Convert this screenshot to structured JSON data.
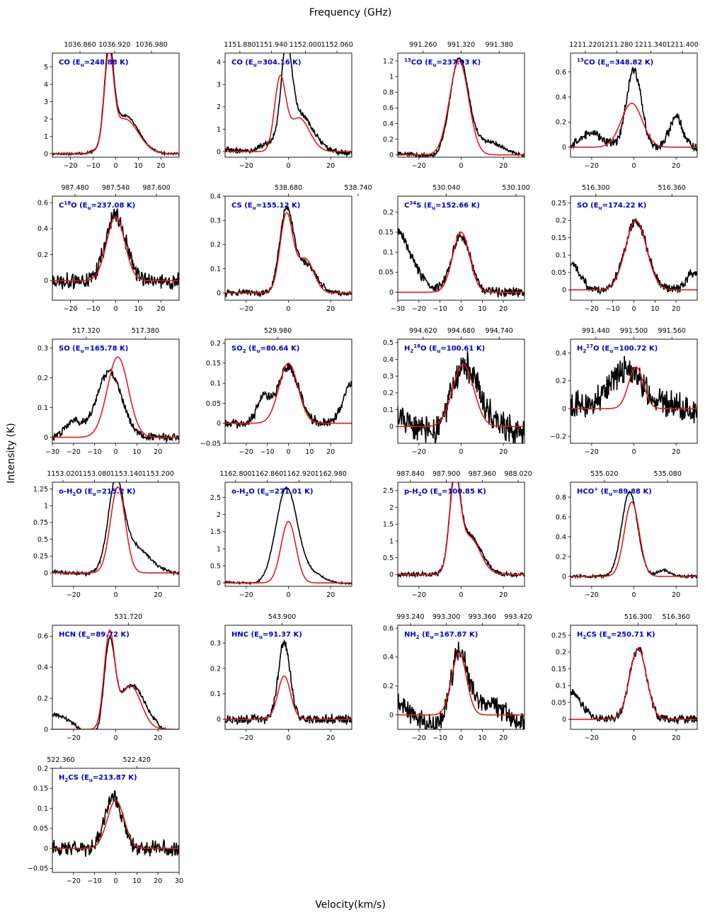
{
  "figure": {
    "top_label": "Frequency (GHz)",
    "bottom_label": "Velocity(km/s)",
    "left_label": "Intensity (K)"
  },
  "colors": {
    "observed": "#000000",
    "model": "#e31a1c",
    "label": "#0000cc"
  },
  "chart_data": [
    {
      "type": "line",
      "title": "CO (E$_u$=248.88 K)",
      "xlim": [
        -28,
        28
      ],
      "ylim": [
        -0.2,
        5.8
      ],
      "xticks": [
        -20,
        -10,
        0,
        10,
        20
      ],
      "yticks": [
        0,
        1,
        2,
        3,
        4,
        5
      ],
      "top_ticks": [
        "1036.860",
        "1036.920",
        "1036.980"
      ],
      "top_tick_v": [
        -15.8,
        -0.5,
        15.8
      ],
      "model": [
        {
          "a": 5.0,
          "c": -3,
          "w": 2.0
        },
        {
          "a": 2.0,
          "c": 4,
          "w": 6.0
        }
      ],
      "obs": [
        {
          "a": 5.3,
          "c": -3,
          "w": 2.0
        },
        {
          "a": 2.2,
          "c": 4,
          "w": 6.0
        }
      ],
      "noise": 0.05,
      "base": 0
    },
    {
      "type": "line",
      "title": "CO (E$_u$=304.16 K)",
      "xlim": [
        -30,
        30
      ],
      "ylim": [
        -0.25,
        4.4
      ],
      "xticks": [
        -20,
        0,
        20
      ],
      "yticks": [
        0,
        1,
        2,
        3,
        4
      ],
      "top_ticks": [
        "1151.880",
        "1151.940",
        "1152.000",
        "1152.060"
      ],
      "top_tick_v": [
        -23,
        -8,
        8,
        23
      ],
      "model": [
        {
          "a": 3.1,
          "c": -4,
          "w": 2.6
        },
        {
          "a": 1.5,
          "c": 5,
          "w": 5.0
        }
      ],
      "obs": [
        {
          "a": 3.9,
          "c": -1,
          "w": 2.5
        },
        {
          "a": 1.6,
          "c": 5,
          "w": 6.0
        },
        {
          "a": 0.4,
          "c": -10,
          "w": 5.0
        }
      ],
      "noise": 0.1,
      "base": 0.1
    },
    {
      "type": "line",
      "title": "$^{13}$CO (E$_u$=237.93 K)",
      "xlim": [
        -30,
        30
      ],
      "ylim": [
        -0.03,
        1.3
      ],
      "xticks": [
        -20,
        0,
        20
      ],
      "yticks": [
        0,
        0.2,
        0.4,
        0.6,
        0.8,
        1.0,
        1.2
      ],
      "top_ticks": [
        "991.260",
        "991.320",
        "991.380"
      ],
      "top_tick_v": [
        -18,
        0,
        18
      ],
      "model": [
        {
          "a": 1.2,
          "c": -1,
          "w": 4.5
        }
      ],
      "obs": [
        {
          "a": 1.2,
          "c": -1,
          "w": 4.3
        },
        {
          "a": 0.15,
          "c": 12,
          "w": 8.0
        }
      ],
      "noise": 0.02,
      "base": 0.02
    },
    {
      "type": "line",
      "title": "$^{13}$CO (E$_u$=348.82 K)",
      "xlim": [
        -30,
        30
      ],
      "ylim": [
        -0.08,
        0.75
      ],
      "xticks": [
        -20,
        0,
        20
      ],
      "yticks": [
        0,
        0.2,
        0.4,
        0.6
      ],
      "top_ticks": [
        "1211.220",
        "1211.280",
        "1211.340",
        "1211.400"
      ],
      "top_tick_v": [
        -23,
        -8,
        8,
        23
      ],
      "model": [
        {
          "a": 0.35,
          "c": -1,
          "w": 5.0
        }
      ],
      "obs": [
        {
          "a": 0.62,
          "c": 0,
          "w": 3.5
        },
        {
          "a": 0.25,
          "c": 20,
          "w": 3.0
        },
        {
          "a": 0.12,
          "c": -20,
          "w": 5.0
        }
      ],
      "noise": 0.03,
      "base": 0.0
    },
    {
      "type": "line",
      "title": "C$^{18}$O (E$_u$=237.08 K)",
      "xlim": [
        -28,
        28
      ],
      "ylim": [
        -0.15,
        0.65
      ],
      "xticks": [
        -20,
        -10,
        0,
        10,
        20
      ],
      "yticks": [
        0,
        0.2,
        0.4,
        0.6
      ],
      "top_ticks": [
        "987.480",
        "987.540",
        "987.600"
      ],
      "top_tick_v": [
        -18,
        0,
        18
      ],
      "model": [
        {
          "a": 0.49,
          "c": 0,
          "w": 4.0
        }
      ],
      "obs": [
        {
          "a": 0.5,
          "c": 0,
          "w": 4.5
        }
      ],
      "noise": 0.05,
      "base": 0
    },
    {
      "type": "line",
      "title": "CS (E$_u$=155.12 K)",
      "xlim": [
        -30,
        30
      ],
      "ylim": [
        -0.03,
        0.4
      ],
      "xticks": [
        -20,
        0,
        20
      ],
      "yticks": [
        0,
        0.1,
        0.2,
        0.3,
        0.4
      ],
      "top_ticks": [
        "538.680",
        "538.740"
      ],
      "top_tick_v": [
        0,
        33
      ],
      "model": [
        {
          "a": 0.32,
          "c": -1,
          "w": 3.0
        },
        {
          "a": 0.14,
          "c": 8,
          "w": 4.0
        }
      ],
      "obs": [
        {
          "a": 0.33,
          "c": -1,
          "w": 3.2
        },
        {
          "a": 0.12,
          "c": 8,
          "w": 5.0
        }
      ],
      "noise": 0.01,
      "base": 0.0
    },
    {
      "type": "line",
      "title": "C$^{34}$S (E$_u$=152.66 K)",
      "xlim": [
        -30,
        30
      ],
      "ylim": [
        -0.02,
        0.24
      ],
      "xticks": [
        -30,
        -20,
        -10,
        0,
        10,
        20
      ],
      "yticks": [
        0,
        0.05,
        0.1,
        0.15,
        0.2
      ],
      "top_ticks": [
        "530.040",
        "530.100"
      ],
      "top_tick_v": [
        -7,
        26
      ],
      "model": [
        {
          "a": 0.15,
          "c": 0,
          "w": 4.0
        }
      ],
      "obs": [
        {
          "a": 0.14,
          "c": 0,
          "w": 4.5
        },
        {
          "a": 0.16,
          "c": -32,
          "w": 8.0
        }
      ],
      "noise": 0.01,
      "base": 0.0
    },
    {
      "type": "line",
      "title": "SO (E$_u$=174.22 K)",
      "xlim": [
        -30,
        30
      ],
      "ylim": [
        -0.03,
        0.27
      ],
      "xticks": [
        -20,
        -10,
        0,
        10,
        20
      ],
      "yticks": [
        0,
        0.05,
        0.1,
        0.15,
        0.2,
        0.25
      ],
      "top_ticks": [
        "516.300",
        "516.360"
      ],
      "top_tick_v": [
        -18,
        18
      ],
      "model": [
        {
          "a": 0.2,
          "c": 1,
          "w": 5.0
        }
      ],
      "obs": [
        {
          "a": 0.2,
          "c": 1,
          "w": 5.2
        },
        {
          "a": 0.08,
          "c": -30,
          "w": 4.0
        },
        {
          "a": 0.05,
          "c": 28,
          "w": 3.0
        }
      ],
      "noise": 0.01,
      "base": 0.0
    },
    {
      "type": "line",
      "title": "SO (E$_u$=165.78 K)",
      "xlim": [
        -30,
        30
      ],
      "ylim": [
        -0.02,
        0.33
      ],
      "xticks": [
        -30,
        -20,
        -10,
        0,
        10,
        20
      ],
      "yticks": [
        0,
        0.1,
        0.2,
        0.3
      ],
      "top_ticks": [
        "517.320",
        "517.380"
      ],
      "top_tick_v": [
        -14,
        14
      ],
      "model": [
        {
          "a": 0.27,
          "c": 1,
          "w": 5.0
        }
      ],
      "obs": [
        {
          "a": 0.22,
          "c": -3,
          "w": 6.0
        },
        {
          "a": 0.05,
          "c": -20,
          "w": 4.0
        }
      ],
      "noise": 0.01,
      "base": 0.0
    },
    {
      "type": "line",
      "title": "SO$_2$ (E$_u$=80.64 K)",
      "xlim": [
        -30,
        30
      ],
      "ylim": [
        -0.05,
        0.21
      ],
      "xticks": [
        -20,
        -10,
        0,
        10,
        20
      ],
      "yticks": [
        -0.05,
        0,
        0.05,
        0.1,
        0.15,
        0.2
      ],
      "top_ticks": [
        "529.980"
      ],
      "top_tick_v": [
        -5
      ],
      "model": [
        {
          "a": 0.15,
          "c": 0,
          "w": 4.5
        }
      ],
      "obs": [
        {
          "a": 0.14,
          "c": 0,
          "w": 5.0
        },
        {
          "a": 0.06,
          "c": -12,
          "w": 3.0
        },
        {
          "a": 0.1,
          "c": 30,
          "w": 4.0
        }
      ],
      "noise": 0.01,
      "base": 0.0
    },
    {
      "type": "line",
      "title": "H$_2^{18}$O (E$_u$=100.61 K)",
      "xlim": [
        -30,
        30
      ],
      "ylim": [
        -0.1,
        0.52
      ],
      "xticks": [
        -20,
        0,
        20
      ],
      "yticks": [
        0,
        0.1,
        0.2,
        0.3,
        0.4,
        0.5
      ],
      "top_ticks": [
        "994.620",
        "994.680",
        "994.740"
      ],
      "top_tick_v": [
        -18,
        0,
        18
      ],
      "model": [
        {
          "a": 0.37,
          "c": 1,
          "w": 5.0
        }
      ],
      "obs": [
        {
          "a": 0.35,
          "c": 1,
          "w": 6.0
        }
      ],
      "noise": 0.07,
      "base": 0.05
    },
    {
      "type": "line",
      "title": "H$_2^{17}$O (E$_u$=100.72 K)",
      "xlim": [
        -30,
        30
      ],
      "ylim": [
        -0.25,
        0.5
      ],
      "xticks": [
        -20,
        0,
        20
      ],
      "yticks": [
        -0.2,
        0,
        0.2,
        0.4
      ],
      "top_ticks": [
        "991.440",
        "991.500",
        "991.560"
      ],
      "top_tick_v": [
        -18,
        0,
        18
      ],
      "model": [
        {
          "a": 0.3,
          "c": 1,
          "w": 3.5
        }
      ],
      "obs": [
        {
          "a": 0.3,
          "c": -5,
          "w": 8.0
        }
      ],
      "noise": 0.08,
      "base": 0.03
    },
    {
      "type": "line",
      "title": "o-H$_2$O (E$_u$=215.2 K)",
      "xlim": [
        -30,
        30
      ],
      "ylim": [
        -0.2,
        1.35
      ],
      "xticks": [
        -20,
        0,
        20
      ],
      "yticks": [
        0,
        0.25,
        0.5,
        0.75,
        1.0,
        1.25
      ],
      "top_ticks": [
        "1153.020",
        "1153.080",
        "1153.140",
        "1153.200"
      ],
      "top_tick_v": [
        -25,
        -10,
        5,
        20
      ],
      "model": [
        {
          "a": 1.28,
          "c": 1,
          "w": 3.5
        }
      ],
      "obs": [
        {
          "a": 1.15,
          "c": 0,
          "w": 3.5
        },
        {
          "a": 0.4,
          "c": 7,
          "w": 8.0
        }
      ],
      "noise": 0.02,
      "base": 0.02
    },
    {
      "type": "line",
      "title": "o-H$_2$O (E$_u$=271.01 K)",
      "xlim": [
        -30,
        30
      ],
      "ylim": [
        -0.1,
        2.95
      ],
      "xticks": [
        -20,
        0,
        20
      ],
      "yticks": [
        0,
        0.5,
        1.0,
        1.5,
        2.0,
        2.5
      ],
      "top_ticks": [
        "1162.800",
        "1162.860",
        "1162.920",
        "1162.980"
      ],
      "top_tick_v": [
        -25,
        -10,
        5,
        20
      ],
      "model": [
        {
          "a": 1.8,
          "c": 0,
          "w": 3.5
        }
      ],
      "obs": [
        {
          "a": 2.75,
          "c": -1,
          "w": 5.0
        },
        {
          "a": 0.25,
          "c": 10,
          "w": 6.0
        }
      ],
      "noise": 0.02,
      "base": 0.03
    },
    {
      "type": "line",
      "title": "p-H$_2$O (E$_u$=100.85 K)",
      "xlim": [
        -30,
        30
      ],
      "ylim": [
        -0.35,
        2.75
      ],
      "xticks": [
        -20,
        0,
        20
      ],
      "yticks": [
        0,
        0.5,
        1.0,
        1.5,
        2.0,
        2.5
      ],
      "top_ticks": [
        "987.840",
        "987.900",
        "987.960",
        "988.020"
      ],
      "top_tick_v": [
        -24,
        -7,
        10,
        27
      ],
      "model": [
        {
          "a": 2.6,
          "c": -3,
          "w": 2.5
        },
        {
          "a": 1.1,
          "c": 4,
          "w": 5.0
        }
      ],
      "obs": [
        {
          "a": 2.6,
          "c": -3,
          "w": 2.5
        },
        {
          "a": 1.15,
          "c": 4,
          "w": 5.5
        }
      ],
      "noise": 0.05,
      "base": 0.0
    },
    {
      "type": "line",
      "title": "HCO$^+$ (E$_u$=89.88 K)",
      "xlim": [
        -30,
        30
      ],
      "ylim": [
        -0.1,
        0.95
      ],
      "xticks": [
        -20,
        0,
        20
      ],
      "yticks": [
        0,
        0.2,
        0.4,
        0.6,
        0.8
      ],
      "top_ticks": [
        "535.020",
        "535.080"
      ],
      "top_tick_v": [
        -14,
        16
      ],
      "model": [
        {
          "a": 0.75,
          "c": -1,
          "w": 3.5
        }
      ],
      "obs": [
        {
          "a": 0.85,
          "c": -2,
          "w": 3.8
        },
        {
          "a": 0.06,
          "c": 14,
          "w": 3.0
        }
      ],
      "noise": 0.01,
      "base": 0.0
    },
    {
      "type": "line",
      "title": "HCN (E$_u$=89.72 K)",
      "xlim": [
        -30,
        30
      ],
      "ylim": [
        0,
        0.67
      ],
      "xticks": [
        -20,
        0,
        20
      ],
      "yticks": [
        0,
        0.2,
        0.4,
        0.6
      ],
      "top_ticks": [
        "531.720"
      ],
      "top_tick_v": [
        6
      ],
      "model": [
        {
          "a": 0.6,
          "c": -3,
          "w": 2.5
        },
        {
          "a": 0.28,
          "c": 7,
          "w": 5.0
        }
      ],
      "obs": [
        {
          "a": 0.55,
          "c": -3,
          "w": 2.5
        },
        {
          "a": 0.24,
          "c": 7,
          "w": 6.0
        },
        {
          "a": 0.06,
          "c": -25,
          "w": 8.0
        }
      ],
      "noise": 0.01,
      "base": 0.05
    },
    {
      "type": "line",
      "title": "HNC (E$_u$=91.37 K)",
      "xlim": [
        -30,
        30
      ],
      "ylim": [
        -0.04,
        0.37
      ],
      "xticks": [
        -20,
        0,
        20
      ],
      "yticks": [
        0,
        0.1,
        0.2,
        0.3
      ],
      "top_ticks": [
        "543.900"
      ],
      "top_tick_v": [
        -3
      ],
      "model": [
        {
          "a": 0.17,
          "c": -2,
          "w": 3.0
        }
      ],
      "obs": [
        {
          "a": 0.3,
          "c": -2,
          "w": 2.8
        }
      ],
      "noise": 0.015,
      "base": 0.0
    },
    {
      "type": "line",
      "title": "NH$_2$ (E$_u$=167.87 K)",
      "xlim": [
        -30,
        30
      ],
      "ylim": [
        -0.1,
        0.62
      ],
      "xticks": [
        -20,
        -10,
        0,
        10,
        20
      ],
      "yticks": [
        0,
        0.2,
        0.4,
        0.6
      ],
      "top_ticks": [
        "993.240",
        "993.300",
        "993.360",
        "993.420"
      ],
      "top_tick_v": [
        -24,
        -7,
        10,
        27
      ],
      "model": [
        {
          "a": 0.43,
          "c": -1,
          "w": 3.5
        }
      ],
      "obs": [
        {
          "a": 0.45,
          "c": -1,
          "w": 4.0
        }
      ],
      "noise": 0.06,
      "base": 0.08
    },
    {
      "type": "line",
      "title": "H$_2$CS (E$_u$=250.71 K)",
      "xlim": [
        -30,
        30
      ],
      "ylim": [
        -0.03,
        0.28
      ],
      "xticks": [
        -20,
        0,
        20
      ],
      "yticks": [
        0,
        0.05,
        0.1,
        0.15,
        0.2,
        0.25
      ],
      "top_ticks": [
        "516.300",
        "516.360"
      ],
      "top_tick_v": [
        2,
        20
      ],
      "model": [
        {
          "a": 0.21,
          "c": 2,
          "w": 4.0
        }
      ],
      "obs": [
        {
          "a": 0.21,
          "c": 2,
          "w": 4.0
        },
        {
          "a": 0.08,
          "c": -30,
          "w": 5.0
        }
      ],
      "noise": 0.01,
      "base": 0.0
    },
    {
      "type": "line",
      "title": "H$_2$CS (E$_u$=213.87 K)",
      "xlim": [
        -30,
        30
      ],
      "ylim": [
        -0.06,
        0.2
      ],
      "xticks": [
        -20,
        -10,
        0,
        10,
        20,
        30
      ],
      "yticks": [
        -0.05,
        0,
        0.05,
        0.1,
        0.15,
        0.2
      ],
      "top_ticks": [
        "522.360",
        "522.420"
      ],
      "top_tick_v": [
        -26,
        10
      ],
      "model": [
        {
          "a": 0.12,
          "c": 0,
          "w": 4.0
        }
      ],
      "obs": [
        {
          "a": 0.13,
          "c": -1,
          "w": 4.0
        }
      ],
      "noise": 0.015,
      "base": 0.0
    }
  ]
}
